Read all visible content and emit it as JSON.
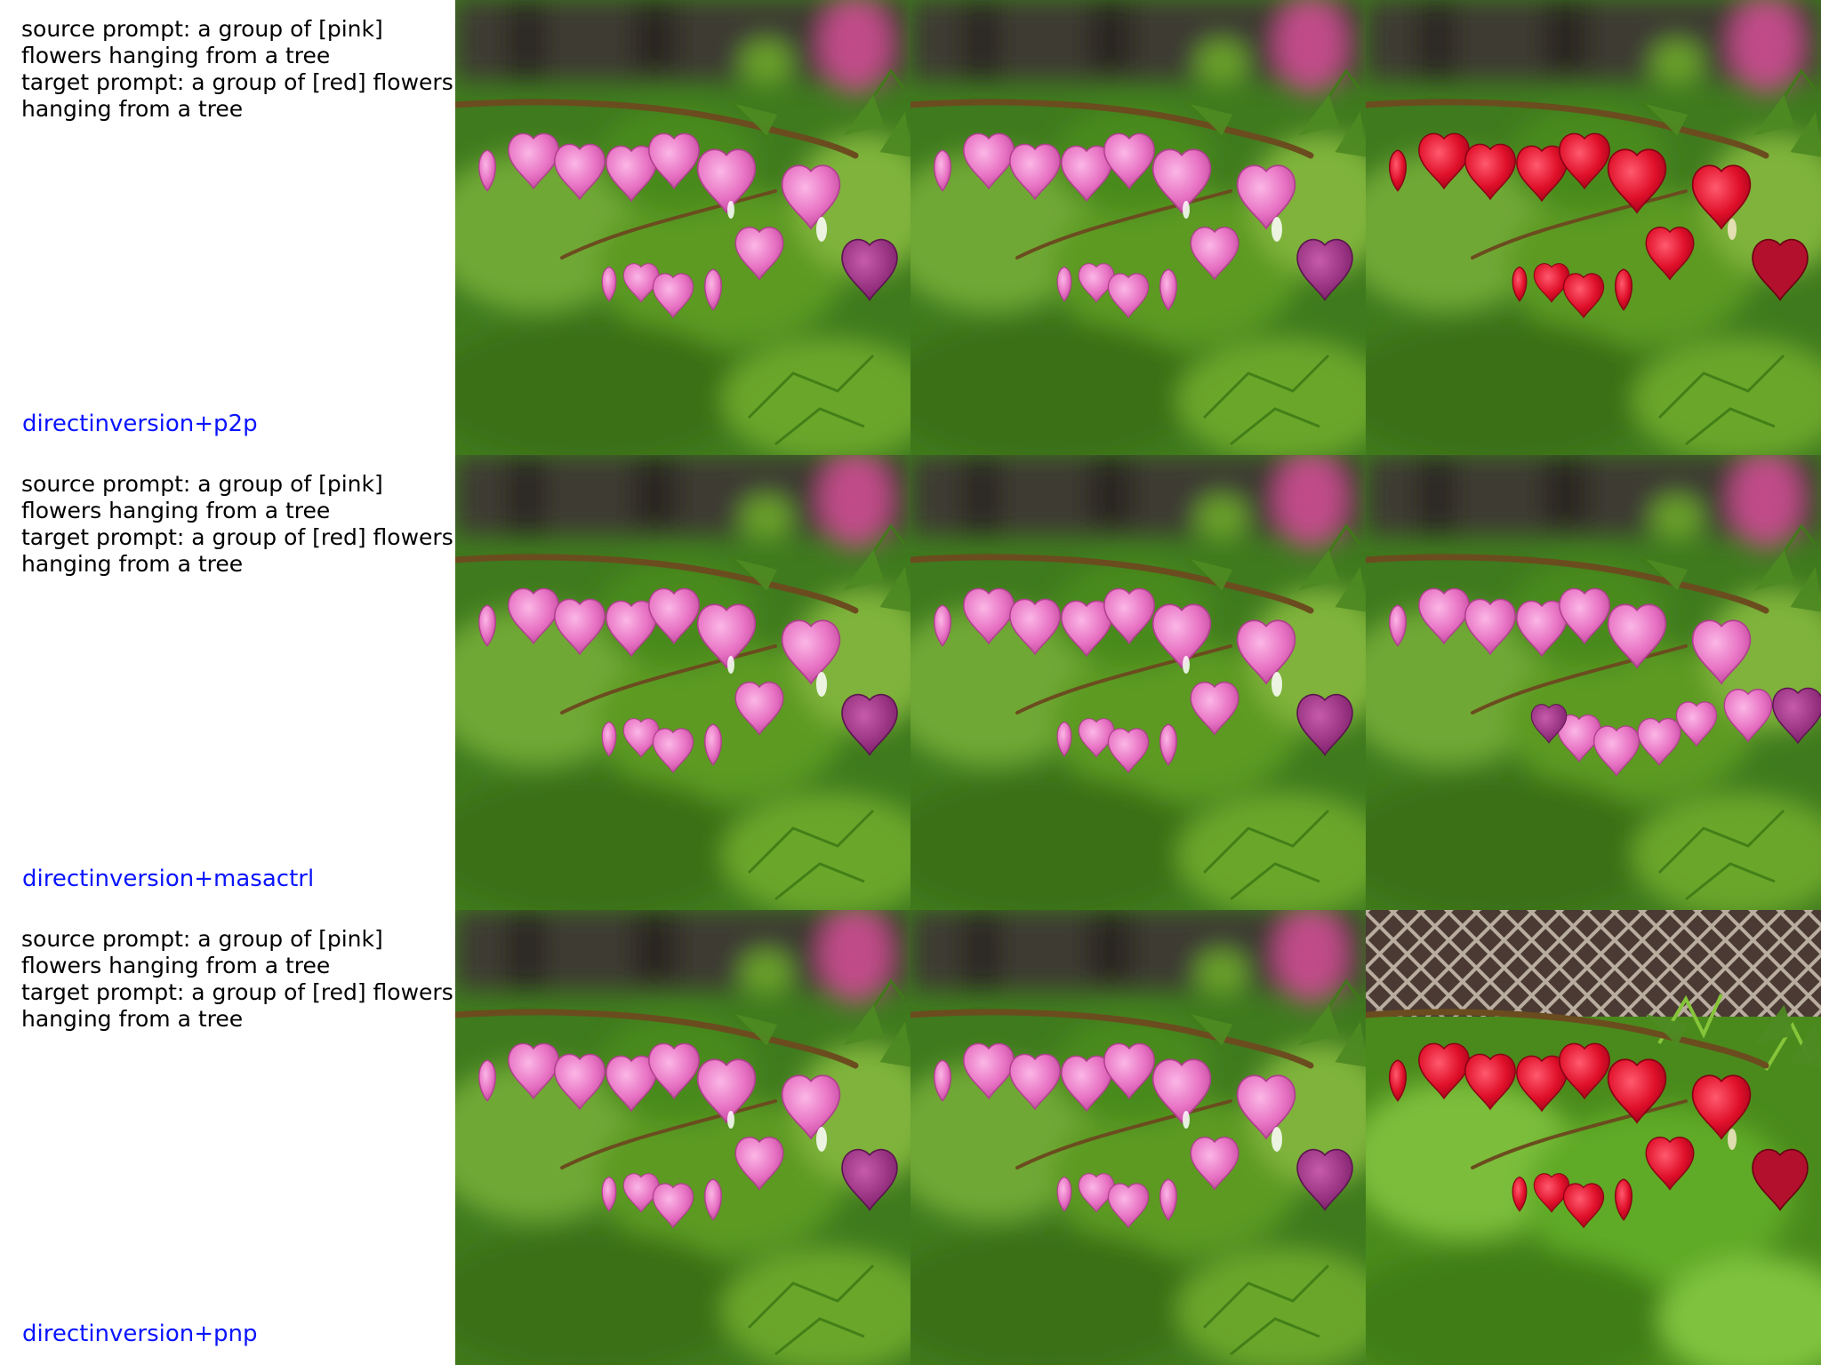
{
  "rows": [
    {
      "source_prompt_label": "source prompt: a group of [pink] flowers hanging from a tree",
      "target_prompt_label": "target prompt: a group of [red] flowers hanging from a tree",
      "method": "directinversion+p2p"
    },
    {
      "source_prompt_label": "source prompt: a group of [pink] flowers hanging from a tree",
      "target_prompt_label": "target prompt: a group of [red] flowers hanging from a tree",
      "method": "directinversion+masactrl"
    },
    {
      "source_prompt_label": "source prompt: a group of [pink] flowers hanging from a tree",
      "target_prompt_label": "target prompt: a group of [red] flowers hanging from a tree",
      "method": "directinversion+pnp"
    }
  ],
  "colors": {
    "method_label": "#0a14ff",
    "pink_flower": "#e873c4",
    "red_flower": "#e0102a",
    "magenta_flower": "#a02a8a"
  }
}
